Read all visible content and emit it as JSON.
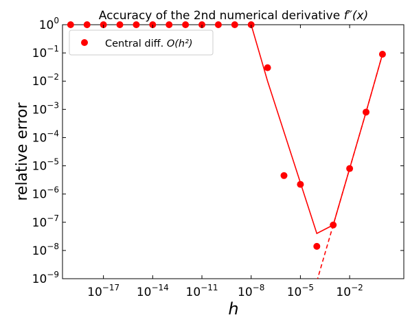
{
  "chart_data": {
    "type": "scatter",
    "title_main": "Accuracy of the 2nd numerical derivative ",
    "title_math": "f″(x)",
    "xlabel": "h",
    "ylabel": "relative error",
    "x_scale": "log",
    "y_scale": "log",
    "xlim": [
      3.2e-20,
      20
    ],
    "ylim": [
      1e-09,
      1
    ],
    "x_ticks": [
      {
        "value": 1e-17,
        "base": "10",
        "exp": "−17"
      },
      {
        "value": 1e-14,
        "base": "10",
        "exp": "−14"
      },
      {
        "value": 1e-11,
        "base": "10",
        "exp": "−11"
      },
      {
        "value": 1e-08,
        "base": "10",
        "exp": "−8"
      },
      {
        "value": 1e-05,
        "base": "10",
        "exp": "−5"
      },
      {
        "value": 0.01,
        "base": "10",
        "exp": "−2"
      }
    ],
    "y_ticks": [
      {
        "value": 1,
        "base": "10",
        "exp": "0"
      },
      {
        "value": 0.1,
        "base": "10",
        "exp": "−1"
      },
      {
        "value": 0.01,
        "base": "10",
        "exp": "−2"
      },
      {
        "value": 0.001,
        "base": "10",
        "exp": "−3"
      },
      {
        "value": 0.0001,
        "base": "10",
        "exp": "−4"
      },
      {
        "value": 1e-05,
        "base": "10",
        "exp": "−5"
      },
      {
        "value": 1e-06,
        "base": "10",
        "exp": "−6"
      },
      {
        "value": 1e-07,
        "base": "10",
        "exp": "−7"
      },
      {
        "value": 1e-08,
        "base": "10",
        "exp": "−8"
      },
      {
        "value": 1e-09,
        "base": "10",
        "exp": "−9"
      }
    ],
    "legend": {
      "label_text": "Central diff. ",
      "label_math": "O(h²)",
      "placement": "top-left"
    },
    "color": "#ff0000",
    "series": [
      {
        "name": "Central diff. O(h²)",
        "kind": "scatter",
        "x": [
          1e-19,
          1e-18,
          1e-17,
          1e-16,
          1e-15,
          1e-14,
          1e-13,
          1e-12,
          1e-11,
          1e-10,
          1e-09,
          1e-08,
          1e-07,
          1e-06,
          1e-05,
          0.0001,
          0.001,
          0.01,
          0.1,
          1
        ],
        "y": [
          1,
          1,
          1,
          1,
          1,
          1,
          1,
          1,
          1,
          1,
          1,
          1,
          0.03,
          4.5e-06,
          2.2e-06,
          1.4e-08,
          8e-08,
          8e-06,
          0.0008,
          0.09
        ]
      },
      {
        "kind": "line",
        "x": [
          1e-10,
          1e-08,
          1e-07,
          0.0001,
          0.001,
          0.01,
          0.1,
          1
        ],
        "y": [
          1000,
          1,
          0.01,
          4e-08,
          8e-08,
          8e-06,
          0.0008,
          0.09
        ]
      },
      {
        "kind": "dashed-line",
        "x": [
          0.0001,
          0.001,
          0.01,
          0.1,
          1
        ],
        "y": [
          8e-10,
          8e-08,
          8e-06,
          0.0008,
          0.09
        ]
      }
    ]
  }
}
